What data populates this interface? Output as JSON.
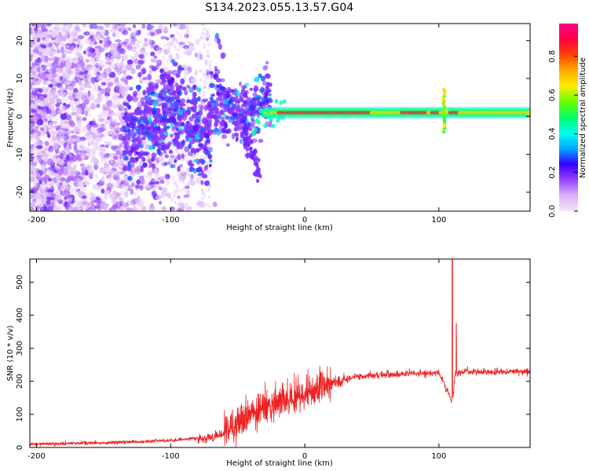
{
  "title": "S134.2023.055.13.57.G04",
  "chart_data": [
    {
      "type": "heatmap",
      "title": "S134.2023.055.13.57.G04",
      "xlabel": "Height of straight line (km)",
      "ylabel": "Frequency (Hz)",
      "xlim": [
        -205,
        168
      ],
      "ylim": [
        -25,
        24.5
      ],
      "xticks": [
        -200,
        -100,
        0,
        100
      ],
      "yticks": [
        -20,
        -10,
        0,
        10,
        20
      ],
      "colorbar": {
        "label": "Normalized spectral amplitude",
        "range": [
          0.0,
          0.97
        ],
        "ticks": [
          "0.0",
          "0.2",
          "0.4",
          "0.6",
          "0.8"
        ],
        "colormap": [
          "#f3e6fb",
          "#d9b3f5",
          "#9a40ff",
          "#3300ff",
          "#00aaff",
          "#00ffee",
          "#00ff66",
          "#66ff00",
          "#ffee00",
          "#ffaa00",
          "#ff4400",
          "#ff0044",
          "#ff0088"
        ]
      },
      "description_values": {
        "noise_region_x": [
          -205,
          -70
        ],
        "transition_region_x": [
          -130,
          -20
        ],
        "carrier_start_x": -30,
        "carrier_frequency_hz": 1,
        "spike_x": 104
      }
    },
    {
      "type": "line",
      "xlabel": "Height of straight line (km)",
      "ylabel": "SNR (10 * v/v)",
      "xlim": [
        -205,
        168
      ],
      "ylim": [
        0,
        570
      ],
      "xticks": [
        -200,
        -100,
        0,
        100
      ],
      "yticks": [
        0,
        100,
        200,
        300,
        400,
        500
      ],
      "line_color": "#ee2222",
      "series": [
        {
          "x": [
            -205,
            -180,
            -150,
            -120,
            -100,
            -80,
            -70,
            -60,
            -50,
            -40,
            -30,
            -20,
            -10,
            0,
            10,
            20,
            30,
            40,
            60,
            80,
            100,
            108,
            110,
            112,
            120,
            140,
            168
          ],
          "y": [
            10,
            12,
            14,
            18,
            22,
            28,
            30,
            45,
            70,
            100,
            120,
            130,
            145,
            160,
            180,
            195,
            205,
            215,
            220,
            225,
            225,
            160,
            130,
            220,
            230,
            228,
            230
          ]
        }
      ],
      "spikes": [
        {
          "x": 110,
          "y": 570
        },
        {
          "x": 113,
          "y": 375
        }
      ]
    }
  ]
}
